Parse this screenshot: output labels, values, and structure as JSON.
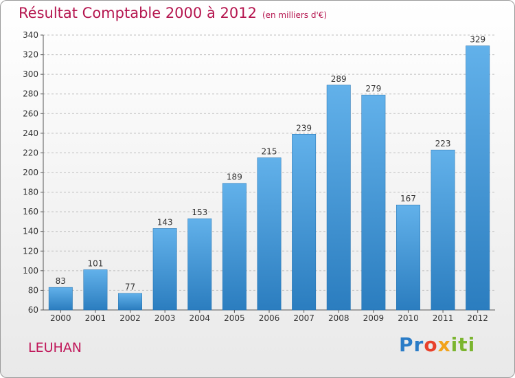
{
  "header": {
    "title": "Résultat Comptable 2000 à 2012",
    "unit": "(en milliers d'€)"
  },
  "footer": {
    "town": "LEUHAN",
    "logo": "Proxiti"
  },
  "colors": {
    "bar_top": "#62b1ea",
    "bar_bottom": "#2b7dbf",
    "title": "#b5164f",
    "grid": "#bdbdbd"
  },
  "chart_data": {
    "type": "bar",
    "title": "Résultat Comptable 2000 à 2012",
    "xlabel": "",
    "ylabel": "",
    "categories": [
      "2000",
      "2001",
      "2002",
      "2003",
      "2004",
      "2005",
      "2006",
      "2007",
      "2008",
      "2009",
      "2010",
      "2011",
      "2012"
    ],
    "values": [
      83,
      101,
      77,
      143,
      153,
      189,
      215,
      239,
      289,
      279,
      167,
      223,
      329
    ],
    "ylim": [
      60,
      340
    ],
    "yticks": [
      60,
      80,
      100,
      120,
      140,
      160,
      180,
      200,
      220,
      240,
      260,
      280,
      300,
      320,
      340
    ],
    "grid": true,
    "data_labels": true
  }
}
